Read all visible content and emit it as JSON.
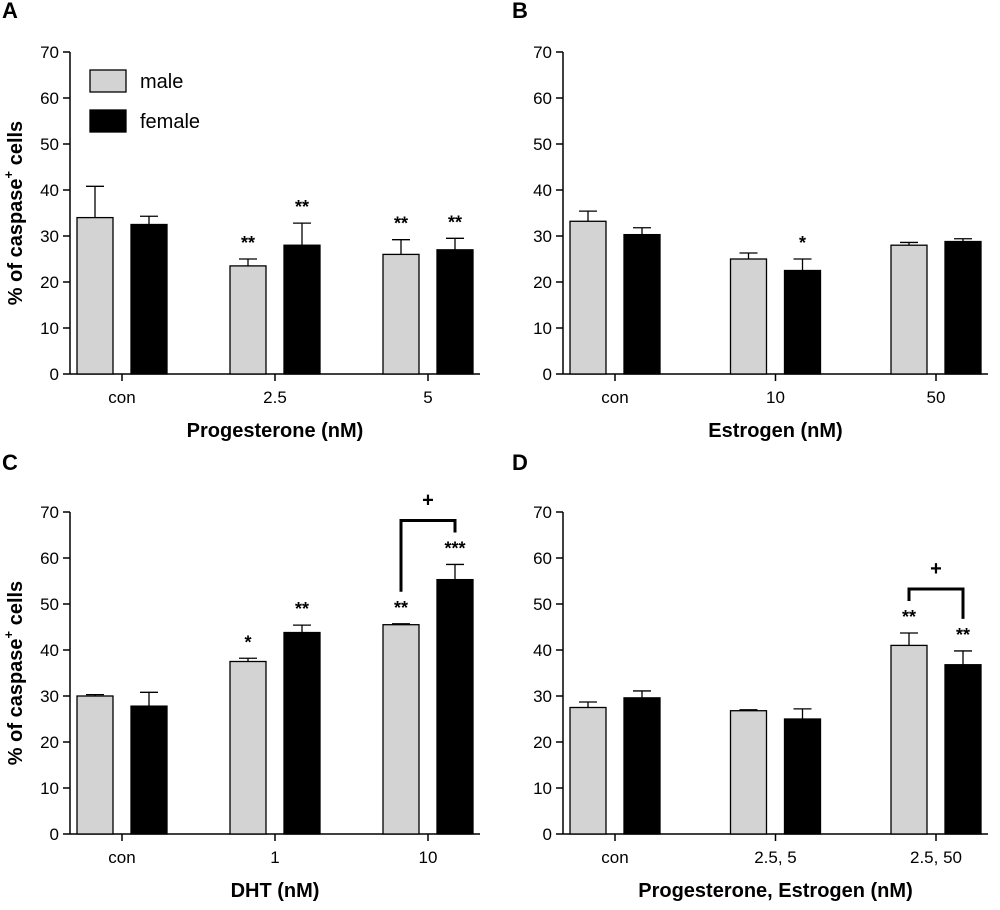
{
  "figure": {
    "ylabel_main": "% of caspase",
    "ylabel_sup": "+",
    "ylabel_tail": " cells"
  },
  "legend": [
    {
      "label": "male",
      "color": "#d3d3d3"
    },
    {
      "label": "female",
      "color": "#000000"
    }
  ],
  "chart_data": [
    {
      "panel": "A",
      "type": "bar",
      "xlabel": "Progesterone (nM)",
      "ylabel": "% of caspase+ cells",
      "ylim": [
        0,
        70
      ],
      "yticks": [
        0,
        10,
        20,
        30,
        40,
        50,
        60,
        70
      ],
      "categories": [
        "con",
        "2.5",
        "5"
      ],
      "series": [
        {
          "name": "male",
          "color": "#d3d3d3",
          "values": [
            34,
            23.5,
            26
          ],
          "errors": [
            6.8,
            1.5,
            3.2
          ],
          "sig": [
            "",
            "**",
            "**"
          ]
        },
        {
          "name": "female",
          "color": "#000000",
          "values": [
            32.5,
            28,
            27
          ],
          "errors": [
            1.8,
            4.8,
            2.5
          ],
          "sig": [
            "",
            "**",
            "**"
          ]
        }
      ],
      "brackets": []
    },
    {
      "panel": "B",
      "type": "bar",
      "xlabel": "Estrogen (nM)",
      "ylabel": "",
      "ylim": [
        0,
        70
      ],
      "yticks": [
        0,
        10,
        20,
        30,
        40,
        50,
        60,
        70
      ],
      "categories": [
        "con",
        "10",
        "50"
      ],
      "series": [
        {
          "name": "male",
          "color": "#d3d3d3",
          "values": [
            33.2,
            25,
            28
          ],
          "errors": [
            2.2,
            1.3,
            0.6
          ],
          "sig": [
            "",
            "",
            ""
          ]
        },
        {
          "name": "female",
          "color": "#000000",
          "values": [
            30.3,
            22.5,
            28.8
          ],
          "errors": [
            1.5,
            2.5,
            0.6
          ],
          "sig": [
            "",
            "*",
            ""
          ]
        }
      ],
      "brackets": []
    },
    {
      "panel": "C",
      "type": "bar",
      "xlabel": "DHT (nM)",
      "ylabel": "% of caspase+ cells",
      "ylim": [
        0,
        70
      ],
      "yticks": [
        0,
        10,
        20,
        30,
        40,
        50,
        60,
        70
      ],
      "categories": [
        "con",
        "1",
        "10"
      ],
      "series": [
        {
          "name": "male",
          "color": "#d3d3d3",
          "values": [
            30,
            37.5,
            45.5
          ],
          "errors": [
            0.3,
            0.7,
            0.2
          ],
          "sig": [
            "",
            "*",
            "**"
          ]
        },
        {
          "name": "female",
          "color": "#000000",
          "values": [
            27.8,
            43.8,
            55.3
          ],
          "errors": [
            3,
            1.6,
            3.3
          ],
          "sig": [
            "",
            "**",
            "***"
          ]
        }
      ],
      "brackets": [
        {
          "category": 2,
          "label": "+"
        }
      ]
    },
    {
      "panel": "D",
      "type": "bar",
      "xlabel": "Progesterone, Estrogen (nM)",
      "ylabel": "",
      "ylim": [
        0,
        70
      ],
      "yticks": [
        0,
        10,
        20,
        30,
        40,
        50,
        60,
        70
      ],
      "categories": [
        "con",
        "2.5, 5",
        "2.5, 50"
      ],
      "series": [
        {
          "name": "male",
          "color": "#d3d3d3",
          "values": [
            27.5,
            26.8,
            41
          ],
          "errors": [
            1.2,
            0.2,
            2.7
          ],
          "sig": [
            "",
            "",
            "**"
          ]
        },
        {
          "name": "female",
          "color": "#000000",
          "values": [
            29.6,
            25,
            36.8
          ],
          "errors": [
            1.5,
            2.2,
            3
          ],
          "sig": [
            "",
            "",
            "**"
          ]
        }
      ],
      "brackets": [
        {
          "category": 2,
          "label": "+"
        }
      ]
    }
  ]
}
